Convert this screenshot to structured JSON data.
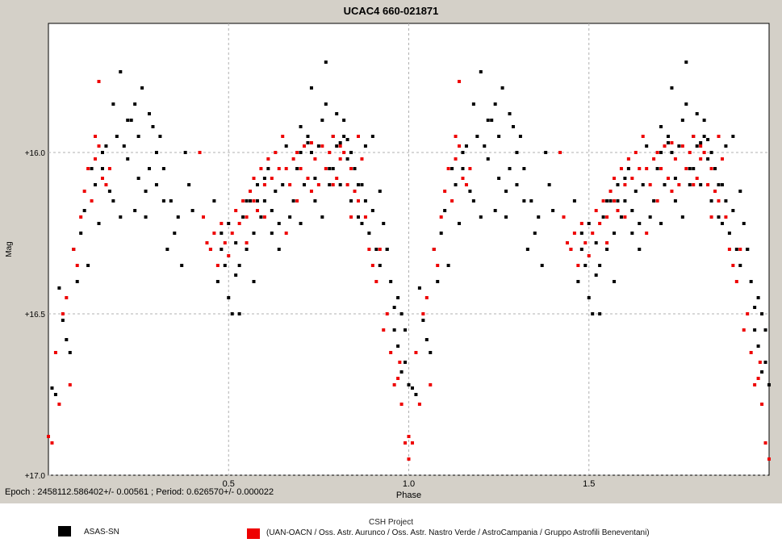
{
  "chart_data": {
    "type": "scatter",
    "title": "UCAC4 660-021871",
    "xlabel": "Phase",
    "ylabel": "Mag",
    "xlim": [
      0.0,
      2.0
    ],
    "ylim": [
      17.0,
      15.6
    ],
    "y_inverted": true,
    "grid": true,
    "x_ticks": [
      0.5,
      1.0,
      1.5
    ],
    "x_tick_labels": [
      "0.5",
      "1.0",
      "1.5"
    ],
    "y_ticks": [
      16.0,
      16.5,
      17.0
    ],
    "y_tick_labels": [
      "+16.0",
      "+16.5",
      "+17.0"
    ],
    "series": [
      {
        "name": "ASAS-SN",
        "color": "#000000",
        "points": [
          [
            0.01,
            16.73
          ],
          [
            0.02,
            16.75
          ],
          [
            0.03,
            16.42
          ],
          [
            0.04,
            16.52
          ],
          [
            0.05,
            16.58
          ],
          [
            0.06,
            16.62
          ],
          [
            0.07,
            16.3
          ],
          [
            0.08,
            16.4
          ],
          [
            0.09,
            16.25
          ],
          [
            0.1,
            16.18
          ],
          [
            0.11,
            16.35
          ],
          [
            0.12,
            16.05
          ],
          [
            0.13,
            16.1
          ],
          [
            0.14,
            16.22
          ],
          [
            0.15,
            16.0
          ],
          [
            0.16,
            15.98
          ],
          [
            0.17,
            16.12
          ],
          [
            0.18,
            16.15
          ],
          [
            0.19,
            15.95
          ],
          [
            0.2,
            16.2
          ],
          [
            0.21,
            15.98
          ],
          [
            0.22,
            16.02
          ],
          [
            0.23,
            15.9
          ],
          [
            0.24,
            15.85
          ],
          [
            0.25,
            16.08
          ],
          [
            0.26,
            15.8
          ],
          [
            0.27,
            16.2
          ],
          [
            0.28,
            16.05
          ],
          [
            0.29,
            15.92
          ],
          [
            0.3,
            16.1
          ],
          [
            0.31,
            15.95
          ],
          [
            0.32,
            16.05
          ],
          [
            0.33,
            16.3
          ],
          [
            0.34,
            16.15
          ],
          [
            0.35,
            16.25
          ],
          [
            0.36,
            16.2
          ],
          [
            0.37,
            16.35
          ],
          [
            0.38,
            16.0
          ],
          [
            0.39,
            16.1
          ],
          [
            0.4,
            16.18
          ],
          [
            0.2,
            15.75
          ],
          [
            0.22,
            15.9
          ],
          [
            0.25,
            15.95
          ],
          [
            0.28,
            15.88
          ],
          [
            0.3,
            16.0
          ],
          [
            0.32,
            16.15
          ],
          [
            0.18,
            15.85
          ],
          [
            0.15,
            16.05
          ],
          [
            0.27,
            16.12
          ],
          [
            0.24,
            16.18
          ],
          [
            0.45,
            16.3
          ],
          [
            0.46,
            16.15
          ],
          [
            0.47,
            16.4
          ],
          [
            0.48,
            16.25
          ],
          [
            0.49,
            16.35
          ],
          [
            0.5,
            16.45
          ],
          [
            0.51,
            16.5
          ],
          [
            0.52,
            16.28
          ],
          [
            0.53,
            16.35
          ],
          [
            0.54,
            16.2
          ],
          [
            0.55,
            16.3
          ],
          [
            0.56,
            16.15
          ],
          [
            0.57,
            16.25
          ],
          [
            0.58,
            16.1
          ],
          [
            0.59,
            16.2
          ],
          [
            0.6,
            16.15
          ],
          [
            0.61,
            16.05
          ],
          [
            0.62,
            16.25
          ],
          [
            0.63,
            16.12
          ],
          [
            0.64,
            16.3
          ],
          [
            0.65,
            16.1
          ],
          [
            0.66,
            15.98
          ],
          [
            0.67,
            16.2
          ],
          [
            0.68,
            16.15
          ],
          [
            0.69,
            16.05
          ],
          [
            0.7,
            15.92
          ],
          [
            0.71,
            16.1
          ],
          [
            0.72,
            15.95
          ],
          [
            0.73,
            16.0
          ],
          [
            0.74,
            16.15
          ],
          [
            0.75,
            15.98
          ],
          [
            0.76,
            15.9
          ],
          [
            0.77,
            15.85
          ],
          [
            0.78,
            16.05
          ],
          [
            0.79,
            15.95
          ],
          [
            0.8,
            15.88
          ],
          [
            0.81,
            16.1
          ],
          [
            0.82,
            15.9
          ],
          [
            0.83,
            16.02
          ],
          [
            0.84,
            16.15
          ],
          [
            0.85,
            16.05
          ],
          [
            0.86,
            16.2
          ],
          [
            0.87,
            16.1
          ],
          [
            0.88,
            15.98
          ],
          [
            0.89,
            16.25
          ],
          [
            0.9,
            16.18
          ],
          [
            0.91,
            16.3
          ],
          [
            0.92,
            16.35
          ],
          [
            0.93,
            16.22
          ],
          [
            0.94,
            16.3
          ],
          [
            0.95,
            16.4
          ],
          [
            0.96,
            16.55
          ],
          [
            0.97,
            16.6
          ],
          [
            0.98,
            16.5
          ],
          [
            0.99,
            16.65
          ],
          [
            1.0,
            16.72
          ],
          [
            0.97,
            16.45
          ],
          [
            0.98,
            16.68
          ],
          [
            0.99,
            16.55
          ],
          [
            0.96,
            16.48
          ],
          [
            0.73,
            15.8
          ],
          [
            0.77,
            15.72
          ],
          [
            0.72,
            15.97
          ],
          [
            0.74,
            16.08
          ],
          [
            0.79,
            16.05
          ],
          [
            0.81,
            15.97
          ],
          [
            0.83,
            15.96
          ],
          [
            0.86,
            16.1
          ],
          [
            0.88,
            16.15
          ],
          [
            0.7,
            16.0
          ],
          [
            0.58,
            16.15
          ],
          [
            0.6,
            16.08
          ],
          [
            0.62,
            16.18
          ],
          [
            0.64,
            16.22
          ],
          [
            0.52,
            16.38
          ],
          [
            0.5,
            16.22
          ],
          [
            0.48,
            16.3
          ],
          [
            0.53,
            16.5
          ],
          [
            0.55,
            16.15
          ],
          [
            0.57,
            16.4
          ],
          [
            0.76,
            16.2
          ],
          [
            0.78,
            16.1
          ],
          [
            0.8,
            15.98
          ],
          [
            0.82,
            15.95
          ],
          [
            0.84,
            16.0
          ],
          [
            0.87,
            16.22
          ],
          [
            0.9,
            15.95
          ],
          [
            0.92,
            16.12
          ],
          [
            0.94,
            16.3
          ],
          [
            0.7,
            16.22
          ]
        ]
      },
      {
        "name": "(UAN-OACN / Oss. Astr. Aurunco / Oss. Astr. Nastro Verde / AstroCampania / Gruppo Astrofili Beneventani)",
        "color": "#ee0000",
        "points": [
          [
            0.0,
            16.88
          ],
          [
            0.01,
            16.9
          ],
          [
            0.02,
            16.62
          ],
          [
            0.03,
            16.78
          ],
          [
            0.04,
            16.5
          ],
          [
            0.05,
            16.45
          ],
          [
            0.06,
            16.72
          ],
          [
            0.07,
            16.3
          ],
          [
            0.08,
            16.35
          ],
          [
            0.09,
            16.2
          ],
          [
            0.1,
            16.12
          ],
          [
            0.11,
            16.05
          ],
          [
            0.12,
            16.15
          ],
          [
            0.13,
            16.02
          ],
          [
            0.14,
            15.98
          ],
          [
            0.15,
            16.08
          ],
          [
            0.16,
            16.1
          ],
          [
            0.17,
            16.05
          ],
          [
            0.14,
            15.78
          ],
          [
            0.13,
            15.95
          ],
          [
            0.42,
            16.0
          ],
          [
            0.43,
            16.2
          ],
          [
            0.44,
            16.28
          ],
          [
            0.45,
            16.3
          ],
          [
            0.46,
            16.25
          ],
          [
            0.47,
            16.35
          ],
          [
            0.48,
            16.22
          ],
          [
            0.49,
            16.28
          ],
          [
            0.5,
            16.32
          ],
          [
            0.51,
            16.25
          ],
          [
            0.52,
            16.18
          ],
          [
            0.53,
            16.22
          ],
          [
            0.54,
            16.15
          ],
          [
            0.55,
            16.2
          ],
          [
            0.56,
            16.12
          ],
          [
            0.57,
            16.08
          ],
          [
            0.58,
            16.18
          ],
          [
            0.59,
            16.05
          ],
          [
            0.6,
            16.1
          ],
          [
            0.61,
            16.02
          ],
          [
            0.62,
            16.08
          ],
          [
            0.63,
            16.0
          ],
          [
            0.64,
            16.05
          ],
          [
            0.65,
            15.95
          ],
          [
            0.66,
            16.05
          ],
          [
            0.67,
            16.1
          ],
          [
            0.68,
            16.02
          ],
          [
            0.69,
            16.0
          ],
          [
            0.7,
            16.05
          ],
          [
            0.71,
            15.98
          ],
          [
            0.72,
            16.08
          ],
          [
            0.73,
            15.97
          ],
          [
            0.74,
            16.02
          ],
          [
            0.75,
            16.1
          ],
          [
            0.76,
            15.98
          ],
          [
            0.77,
            16.05
          ],
          [
            0.78,
            16.0
          ],
          [
            0.79,
            15.95
          ],
          [
            0.8,
            16.08
          ],
          [
            0.81,
            16.02
          ],
          [
            0.82,
            16.0
          ],
          [
            0.83,
            16.1
          ],
          [
            0.84,
            16.05
          ],
          [
            0.85,
            16.12
          ],
          [
            0.86,
            16.15
          ],
          [
            0.87,
            16.02
          ],
          [
            0.88,
            16.2
          ],
          [
            0.89,
            16.3
          ],
          [
            0.9,
            16.35
          ],
          [
            0.91,
            16.4
          ],
          [
            0.92,
            16.3
          ],
          [
            0.93,
            16.55
          ],
          [
            0.94,
            16.5
          ],
          [
            0.95,
            16.62
          ],
          [
            0.96,
            16.72
          ],
          [
            0.97,
            16.7
          ],
          [
            0.98,
            16.78
          ],
          [
            0.99,
            16.9
          ],
          [
            1.0,
            16.95
          ],
          [
            0.975,
            16.65
          ],
          [
            0.55,
            16.28
          ],
          [
            0.57,
            16.15
          ],
          [
            0.6,
            16.2
          ],
          [
            0.66,
            16.25
          ],
          [
            0.69,
            16.15
          ],
          [
            0.73,
            16.12
          ],
          [
            0.79,
            16.1
          ],
          [
            0.81,
            15.98
          ],
          [
            0.84,
            16.2
          ],
          [
            0.86,
            15.95
          ]
        ]
      }
    ],
    "phase_repeat_offset": 1.0
  },
  "footer": {
    "epoch_text": "Epoch : 2458112.586402+/- 0.00561 ; Period: 0.626570+/- 0.000022",
    "project": "CSH Project"
  },
  "legend": {
    "items": [
      {
        "label": "ASAS-SN",
        "color": "#000000"
      },
      {
        "label": "(UAN-OACN / Oss. Astr. Aurunco / Oss. Astr. Nastro Verde / AstroCampania / Gruppo Astrofili Beneventani)",
        "color": "#ee0000"
      }
    ]
  },
  "colors": {
    "frame_bg": "#d4d0c8",
    "plot_bg": "#ffffff",
    "grid": "#b0b0b0"
  }
}
